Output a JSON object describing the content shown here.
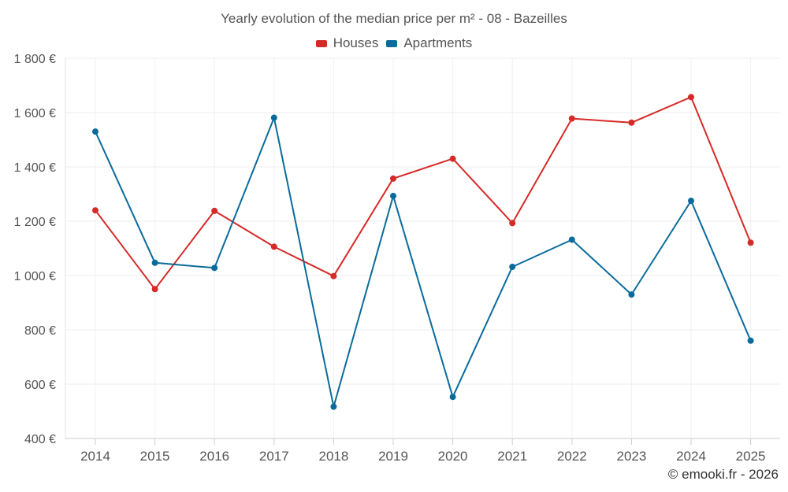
{
  "chart_data": {
    "type": "line",
    "title": "Yearly evolution of the median price per m² - 08 - Bazeilles",
    "categories": [
      "2014",
      "2015",
      "2016",
      "2017",
      "2018",
      "2019",
      "2020",
      "2021",
      "2022",
      "2023",
      "2024",
      "2025"
    ],
    "series": [
      {
        "name": "Houses",
        "color": "#d62a27",
        "values": [
          1240,
          950,
          1238,
          1106,
          998,
          1357,
          1430,
          1193,
          1578,
          1563,
          1657,
          1121
        ]
      },
      {
        "name": "Apartments",
        "color": "#0a6b9b",
        "values": [
          1530,
          1047,
          1028,
          1581,
          517,
          1293,
          553,
          1032,
          1132,
          930,
          1275,
          760
        ]
      }
    ],
    "ylim": [
      400,
      1800
    ],
    "yticks": [
      400,
      600,
      800,
      1000,
      1200,
      1400,
      1600,
      1800
    ],
    "ytick_labels": [
      "400 €",
      "600 €",
      "800 €",
      "1 000 €",
      "1 200 €",
      "1 400 €",
      "1 600 €",
      "1 800 €"
    ],
    "xlabel": "",
    "ylabel": "",
    "grid": true,
    "legend_position": "top-center"
  },
  "credit": "© emooki.fr - 2026"
}
